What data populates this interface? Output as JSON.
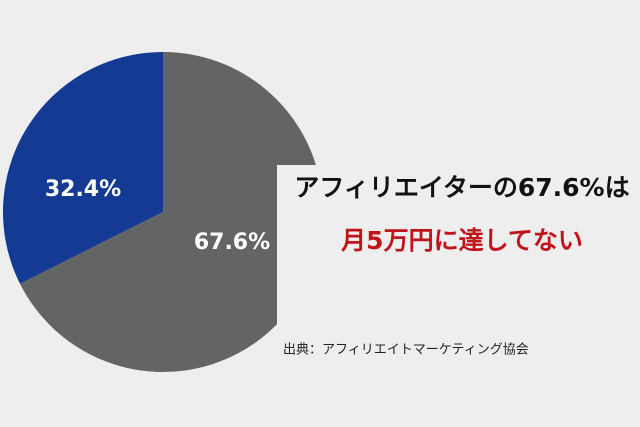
{
  "chart_data": {
    "type": "pie",
    "values": [
      67.6,
      32.4
    ],
    "value_labels": [
      "67.6%",
      "32.4%"
    ],
    "colors": [
      "#636466",
      "#143a93"
    ],
    "headline": [
      "アフィリエイターの67.6%は",
      "月5万円に達してない"
    ],
    "headline_colors": [
      "#111111",
      "#c0141b"
    ],
    "source": "出典：アフィリエイトマーケティング協会"
  }
}
